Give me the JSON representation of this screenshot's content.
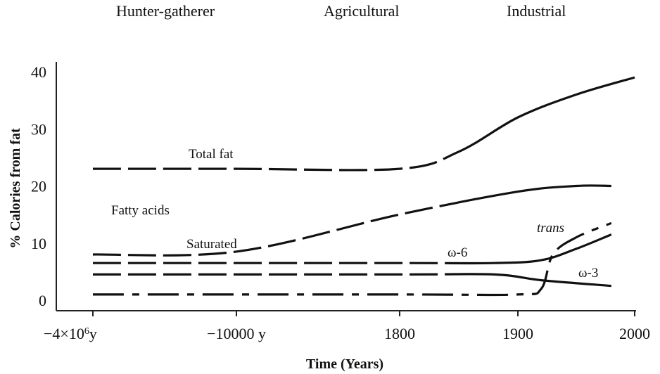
{
  "chart_data": {
    "type": "line",
    "title": "",
    "xlabel": "Time (Years)",
    "ylabel": "% Calories from fat",
    "x_categories": [
      "−4×10",
      "−10000 y",
      "1800",
      "1900",
      "2000"
    ],
    "x_tick_first_label": {
      "base": "−4×10",
      "exponent": "6",
      "suffix": "y"
    },
    "y_ticks": [
      "0",
      "10",
      "20",
      "30",
      "40"
    ],
    "ylim": [
      0,
      40
    ],
    "eras": [
      "Hunter-gatherer",
      "Agricultural",
      "Industrial"
    ],
    "group_label": "Fatty acids",
    "series": [
      {
        "name": "Total fat",
        "label_style": "normal",
        "points": [
          [
            "−4×10^6 y",
            23
          ],
          [
            "−10000 y",
            23
          ],
          [
            "1800",
            23
          ],
          [
            "1850",
            26
          ],
          [
            "1900",
            32
          ],
          [
            "1950",
            36
          ],
          [
            "2000",
            39
          ]
        ]
      },
      {
        "name": "Saturated",
        "label_style": "normal",
        "points": [
          [
            "−4×10^6 y",
            8
          ],
          [
            "−10000 y",
            8.5
          ],
          [
            "1800",
            15
          ],
          [
            "1900",
            19
          ],
          [
            "1950",
            20
          ],
          [
            "1980",
            20
          ]
        ]
      },
      {
        "name": "ω-6",
        "label_style": "normal",
        "points": [
          [
            "−4×10^6 y",
            6.5
          ],
          [
            "1800",
            6.5
          ],
          [
            "1880",
            6.5
          ],
          [
            "1920",
            7
          ],
          [
            "1950",
            9
          ],
          [
            "1980",
            11.5
          ]
        ]
      },
      {
        "name": "ω-3",
        "label_style": "normal",
        "points": [
          [
            "−4×10^6 y",
            4.5
          ],
          [
            "1800",
            4.5
          ],
          [
            "1880",
            4.5
          ],
          [
            "1920",
            3.5
          ],
          [
            "1980",
            2.5
          ]
        ]
      },
      {
        "name": "trans",
        "label_style": "italic",
        "points": [
          [
            "−4×10^6 y",
            1
          ],
          [
            "1800",
            1
          ],
          [
            "1900",
            1
          ],
          [
            "1920",
            2
          ],
          [
            "1930",
            8
          ],
          [
            "1950",
            11
          ],
          [
            "1980",
            13.5
          ]
        ]
      }
    ],
    "grid": false,
    "legend": "none (inline labels)"
  }
}
